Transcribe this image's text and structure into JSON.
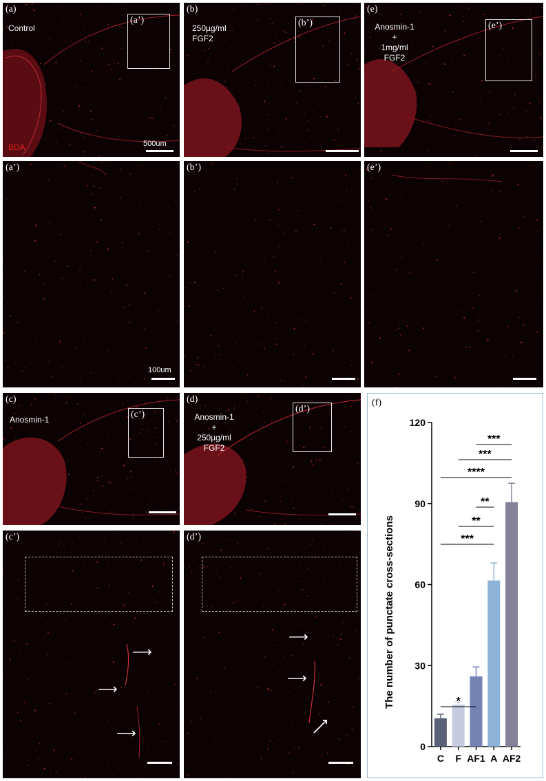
{
  "panels": {
    "a": {
      "label": "(a)",
      "condition": "Control",
      "inset": "(a’)",
      "bda": "BDA",
      "scale": "500um"
    },
    "b": {
      "label": "(b)",
      "condition": "250µg/ml\nFGF2",
      "inset": "(b’)"
    },
    "e": {
      "label": "(e)",
      "condition": "Anosmin-1\n+\n1mg/ml\nFGF2",
      "inset": "(e’)"
    },
    "a2": {
      "label": "(a’)",
      "scale": "100um"
    },
    "b2": {
      "label": "(b’)"
    },
    "e2": {
      "label": "(e’)"
    },
    "c": {
      "label": "(c)",
      "condition": "Anosmin-1",
      "inset": "(c’)"
    },
    "d": {
      "label": "(d)",
      "condition": "Anosmin-1\n+\n250µg/ml\nFGF2",
      "inset": "(d’)"
    },
    "c2": {
      "label": "(c’)"
    },
    "d2": {
      "label": "(d’)"
    },
    "f": {
      "label": "(f)"
    }
  },
  "colors": {
    "background": "#0c0203",
    "signal": "#c8303a",
    "bda_text": "#e02020"
  },
  "chart_data": {
    "type": "bar",
    "categories": [
      "C",
      "F",
      "AF1",
      "A",
      "AF2"
    ],
    "values": [
      10.5,
      15.5,
      26,
      61.5,
      90.5
    ],
    "errors": [
      1.5,
      1.0,
      3.5,
      6.5,
      7.0
    ],
    "colors": [
      "#5b6178",
      "#c6cbe2",
      "#7482b4",
      "#8fb2d8",
      "#878199"
    ],
    "ylabel": "The number of punctate cross-sections",
    "ylim": [
      0,
      120
    ],
    "yticks": [
      0,
      30,
      60,
      90,
      120
    ],
    "significance": [
      {
        "from": "C",
        "to": "AF1",
        "label": "*"
      },
      {
        "from": "C",
        "to": "A",
        "label": "***"
      },
      {
        "from": "F",
        "to": "A",
        "label": "**"
      },
      {
        "from": "AF1",
        "to": "A",
        "label": "**"
      },
      {
        "from": "C",
        "to": "AF2",
        "label": "****"
      },
      {
        "from": "F",
        "to": "AF2",
        "label": "***"
      },
      {
        "from": "AF1",
        "to": "AF2",
        "label": "***"
      }
    ]
  }
}
